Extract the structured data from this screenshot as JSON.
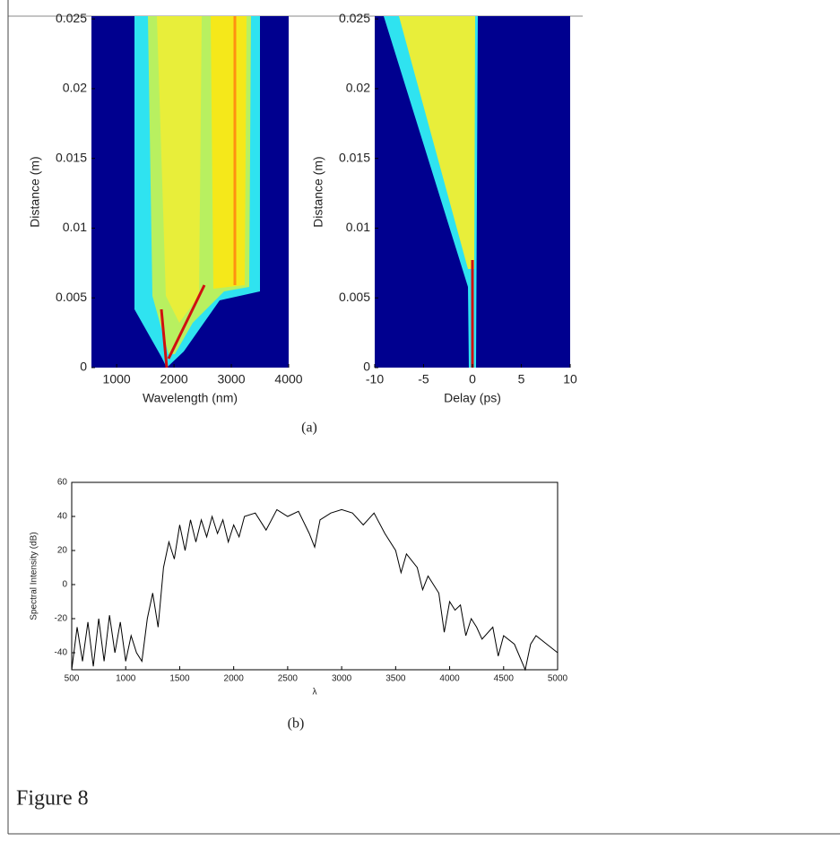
{
  "chart_data": [
    {
      "type": "heatmap",
      "xlabel": "Wavelength (nm)",
      "ylabel": "Distance (m)",
      "xlim": [
        560,
        4000
      ],
      "xticks": [
        1000,
        2000,
        3000,
        4000
      ],
      "ylim": [
        0,
        0.0252
      ],
      "yticks": [
        0,
        0.005,
        0.01,
        0.015,
        0.02,
        0.025
      ]
    },
    {
      "type": "heatmap",
      "xlabel": "Delay (ps)",
      "ylabel": "Distance (m)",
      "xlim": [
        -10,
        10
      ],
      "xticks": [
        -10,
        -5,
        0,
        5,
        10
      ],
      "ylim": [
        0,
        0.0252
      ],
      "yticks": [
        0,
        0.005,
        0.01,
        0.015,
        0.02,
        0.025
      ]
    },
    {
      "type": "line",
      "xlabel": "λ",
      "ylabel": "Spectral Intensity (dB)",
      "xlim": [
        500,
        5000
      ],
      "xticks": [
        500,
        1000,
        1500,
        2000,
        2500,
        3000,
        3500,
        4000,
        4500,
        5000
      ],
      "ylim": [
        -50,
        60
      ],
      "yticks": [
        -40,
        -20,
        0,
        20,
        40,
        60
      ],
      "series": [
        {
          "color": "#000000",
          "x": [
            500,
            550,
            600,
            650,
            700,
            750,
            800,
            850,
            900,
            950,
            1000,
            1050,
            1100,
            1150,
            1200,
            1250,
            1300,
            1350,
            1400,
            1450,
            1500,
            1550,
            1600,
            1650,
            1700,
            1750,
            1800,
            1850,
            1900,
            1950,
            2000,
            2050,
            2100,
            2200,
            2300,
            2400,
            2500,
            2600,
            2700,
            2750,
            2800,
            2900,
            3000,
            3100,
            3200,
            3300,
            3400,
            3500,
            3550,
            3600,
            3700,
            3750,
            3800,
            3900,
            3950,
            4000,
            4050,
            4100,
            4150,
            4200,
            4250,
            4300,
            4400,
            4450,
            4500,
            4600,
            4700,
            4750,
            4800,
            4900,
            5000
          ],
          "values": [
            -50,
            -25,
            -45,
            -22,
            -48,
            -20,
            -45,
            -18,
            -40,
            -22,
            -45,
            -30,
            -40,
            -45,
            -20,
            -5,
            -25,
            10,
            25,
            15,
            35,
            20,
            38,
            25,
            38,
            28,
            40,
            30,
            38,
            25,
            35,
            28,
            40,
            42,
            32,
            44,
            40,
            43,
            30,
            22,
            38,
            42,
            44,
            42,
            35,
            42,
            30,
            20,
            7,
            18,
            10,
            -3,
            5,
            -5,
            -28,
            -10,
            -15,
            -12,
            -30,
            -20,
            -25,
            -32,
            -25,
            -42,
            -30,
            -35,
            -50,
            -35,
            -30,
            -35,
            -40
          ]
        }
      ]
    }
  ],
  "captions": [
    "(a)",
    "(b)"
  ],
  "figure_label": "Figure 8"
}
